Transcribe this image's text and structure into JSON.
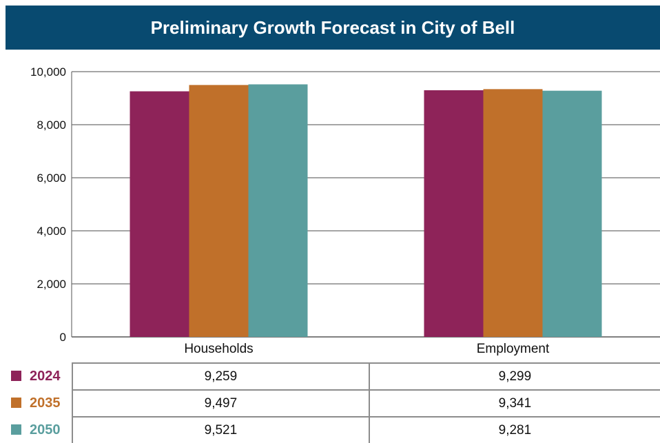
{
  "chart_data": {
    "type": "bar",
    "title": "Preliminary Growth Forecast in City of Bell",
    "categories": [
      "Households",
      "Employment"
    ],
    "series": [
      {
        "name": "2024",
        "values": [
          9259,
          9299
        ],
        "color": "#8e2359"
      },
      {
        "name": "2035",
        "values": [
          9497,
          9341
        ],
        "color": "#c0702a"
      },
      {
        "name": "2050",
        "values": [
          9521,
          9281
        ],
        "color": "#5a9e9e"
      }
    ],
    "ylim": [
      0,
      10000
    ],
    "yticks": [
      "0",
      "2,000",
      "4,000",
      "6,000",
      "8,000",
      "10,000"
    ],
    "grid": true,
    "legend_placement": "bottom (data table)",
    "table": [
      {
        "label": "2024",
        "values": [
          "9,259",
          "9,299"
        ]
      },
      {
        "label": "2035",
        "values": [
          "9,497",
          "9,341"
        ]
      },
      {
        "label": "2050",
        "values": [
          "9,521",
          "9,281"
        ]
      }
    ]
  }
}
